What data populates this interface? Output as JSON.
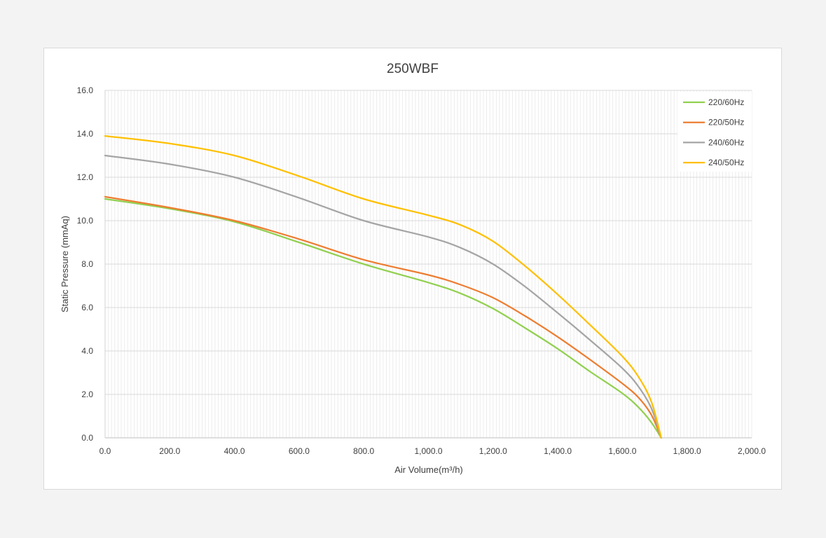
{
  "chart_data": {
    "type": "line",
    "title": "250WBF",
    "xlabel": "Air Volume(m³/h)",
    "ylabel": "Static Pressure (mmAq)",
    "xlim": [
      0,
      2000
    ],
    "ylim": [
      0,
      16
    ],
    "x_ticks": [
      0,
      200,
      400,
      600,
      800,
      1000,
      1200,
      1400,
      1600,
      1800,
      2000
    ],
    "x_tick_labels": [
      "0.0",
      "200.0",
      "400.0",
      "600.0",
      "800.0",
      "1,000.0",
      "1,200.0",
      "1,400.0",
      "1,600.0",
      "1,800.0",
      "2,000.0"
    ],
    "y_ticks": [
      0,
      2,
      4,
      6,
      8,
      10,
      12,
      14,
      16
    ],
    "y_tick_labels": [
      "0.0",
      "2.0",
      "4.0",
      "6.0",
      "8.0",
      "10.0",
      "12.0",
      "14.0",
      "16.0"
    ],
    "grid": true,
    "legend_position": "top-right",
    "series": [
      {
        "name": "220/60Hz",
        "color": "#92d050",
        "points": [
          [
            0,
            11.0
          ],
          [
            200,
            10.55
          ],
          [
            400,
            9.95
          ],
          [
            600,
            9.0
          ],
          [
            800,
            8.0
          ],
          [
            1000,
            7.15
          ],
          [
            1100,
            6.65
          ],
          [
            1200,
            5.95
          ],
          [
            1300,
            5.05
          ],
          [
            1400,
            4.1
          ],
          [
            1500,
            3.05
          ],
          [
            1600,
            2.05
          ],
          [
            1650,
            1.4
          ],
          [
            1690,
            0.7
          ],
          [
            1720,
            0.0
          ]
        ]
      },
      {
        "name": "220/50Hz",
        "color": "#ed7d31",
        "points": [
          [
            0,
            11.1
          ],
          [
            200,
            10.6
          ],
          [
            400,
            10.0
          ],
          [
            600,
            9.15
          ],
          [
            800,
            8.2
          ],
          [
            1000,
            7.5
          ],
          [
            1100,
            7.05
          ],
          [
            1200,
            6.45
          ],
          [
            1300,
            5.6
          ],
          [
            1400,
            4.65
          ],
          [
            1500,
            3.6
          ],
          [
            1600,
            2.5
          ],
          [
            1650,
            1.85
          ],
          [
            1690,
            1.05
          ],
          [
            1720,
            0.0
          ]
        ]
      },
      {
        "name": "240/60Hz",
        "color": "#a5a5a5",
        "points": [
          [
            0,
            13.0
          ],
          [
            200,
            12.6
          ],
          [
            400,
            12.0
          ],
          [
            600,
            11.05
          ],
          [
            800,
            10.0
          ],
          [
            1000,
            9.25
          ],
          [
            1100,
            8.75
          ],
          [
            1200,
            8.0
          ],
          [
            1300,
            6.95
          ],
          [
            1400,
            5.75
          ],
          [
            1500,
            4.5
          ],
          [
            1600,
            3.2
          ],
          [
            1650,
            2.35
          ],
          [
            1690,
            1.35
          ],
          [
            1720,
            0.0
          ]
        ]
      },
      {
        "name": "240/50Hz",
        "color": "#ffc000",
        "points": [
          [
            0,
            13.9
          ],
          [
            200,
            13.55
          ],
          [
            400,
            13.0
          ],
          [
            600,
            12.05
          ],
          [
            800,
            11.0
          ],
          [
            1000,
            10.25
          ],
          [
            1100,
            9.8
          ],
          [
            1200,
            9.05
          ],
          [
            1300,
            7.9
          ],
          [
            1400,
            6.6
          ],
          [
            1500,
            5.2
          ],
          [
            1600,
            3.75
          ],
          [
            1650,
            2.8
          ],
          [
            1690,
            1.65
          ],
          [
            1720,
            0.0
          ]
        ]
      }
    ]
  }
}
